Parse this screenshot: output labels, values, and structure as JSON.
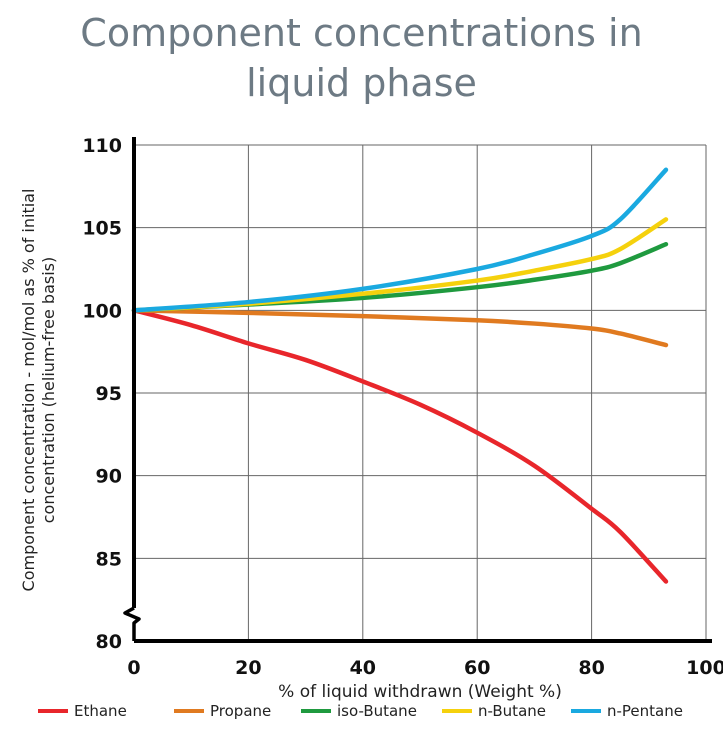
{
  "title_lines": [
    "Component concentrations in",
    "liquid phase"
  ],
  "chart_data": {
    "type": "line",
    "title": "Component concentrations in liquid phase",
    "xlabel": "% of liquid withdrawn (Weight %)",
    "ylabel_lines": [
      "Component concentration - mol/mol as % of initial",
      "concentration (helium-free basis)"
    ],
    "xlim": [
      0,
      100
    ],
    "ylim": [
      80,
      110
    ],
    "xticks": [
      "0",
      "20",
      "40",
      "60",
      "80",
      "100"
    ],
    "yticks": [
      "80",
      "85",
      "90",
      "95",
      "100",
      "105",
      "110"
    ],
    "xtick_values": [
      0,
      20,
      40,
      60,
      80,
      100
    ],
    "ytick_values": [
      80,
      85,
      90,
      95,
      100,
      105,
      110
    ],
    "grid": true,
    "axis_break": "y",
    "legend_position": "bottom",
    "series": [
      {
        "name": "Ethane",
        "color": "#e8262b",
        "x": [
          0,
          10,
          20,
          30,
          40,
          50,
          60,
          70,
          80,
          85,
          93
        ],
        "y": [
          100,
          99.1,
          98.0,
          97.0,
          95.7,
          94.3,
          92.6,
          90.6,
          88.0,
          86.6,
          83.6
        ]
      },
      {
        "name": "Propane",
        "color": "#e07a20",
        "x": [
          0,
          20,
          40,
          60,
          70,
          80,
          85,
          93
        ],
        "y": [
          100,
          99.85,
          99.65,
          99.4,
          99.2,
          98.9,
          98.6,
          97.9
        ]
      },
      {
        "name": "iso-Butane",
        "color": "#1f9a3f",
        "x": [
          0,
          20,
          40,
          60,
          70,
          80,
          85,
          93
        ],
        "y": [
          100,
          100.35,
          100.75,
          101.4,
          101.85,
          102.4,
          102.85,
          104.0
        ]
      },
      {
        "name": "n-Butane",
        "color": "#f5d10d",
        "x": [
          0,
          20,
          40,
          60,
          70,
          80,
          85,
          93
        ],
        "y": [
          100,
          100.4,
          101.0,
          101.8,
          102.4,
          103.1,
          103.7,
          105.5
        ]
      },
      {
        "name": "n-Pentane",
        "color": "#1aa9e0",
        "x": [
          0,
          20,
          40,
          60,
          70,
          80,
          85,
          93
        ],
        "y": [
          100,
          100.5,
          101.3,
          102.5,
          103.4,
          104.5,
          105.5,
          108.5
        ]
      }
    ]
  }
}
